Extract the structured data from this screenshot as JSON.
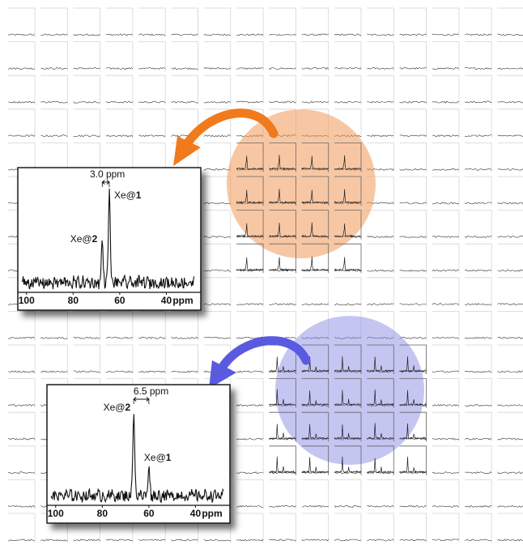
{
  "figure": {
    "grid": {
      "rows": 16,
      "cols": 16
    },
    "highlight_colors": {
      "orange": "#f1995a",
      "blue": "#8c8ce6"
    },
    "arrow_colors": {
      "orange": "#f07a1c",
      "blue": "#5a5ae0"
    }
  },
  "chart_data": [
    {
      "type": "line",
      "title": "",
      "xlabel": "ppm",
      "ylabel": "",
      "x_reversed": true,
      "xlim": [
        102,
        28
      ],
      "ylim": [
        0,
        1.0
      ],
      "xticks": [
        "100",
        "80",
        "60",
        "40"
      ],
      "xtick_values": [
        100,
        80,
        60,
        40
      ],
      "peaks": [
        {
          "label_prefix": "Xe@",
          "label_num": "1",
          "ppm": 64.5,
          "height": 1.0
        },
        {
          "label_prefix": "Xe@",
          "label_num": "2",
          "ppm": 67.5,
          "height": 0.44
        }
      ],
      "separation_label": "3.0 ppm",
      "grid": false,
      "legend": "none"
    },
    {
      "type": "line",
      "title": "",
      "xlabel": "ppm",
      "ylabel": "",
      "x_reversed": true,
      "xlim": [
        102,
        28
      ],
      "ylim": [
        0,
        1.0
      ],
      "xticks": [
        "100",
        "80",
        "60",
        "40"
      ],
      "xtick_values": [
        100,
        80,
        60,
        40
      ],
      "peaks": [
        {
          "label_prefix": "Xe@",
          "label_num": "2",
          "ppm": 66.5,
          "height": 1.0
        },
        {
          "label_prefix": "Xe@",
          "label_num": "1",
          "ppm": 60.0,
          "height": 0.34
        }
      ],
      "separation_label": "6.5 ppm",
      "grid": false,
      "legend": "none"
    }
  ]
}
